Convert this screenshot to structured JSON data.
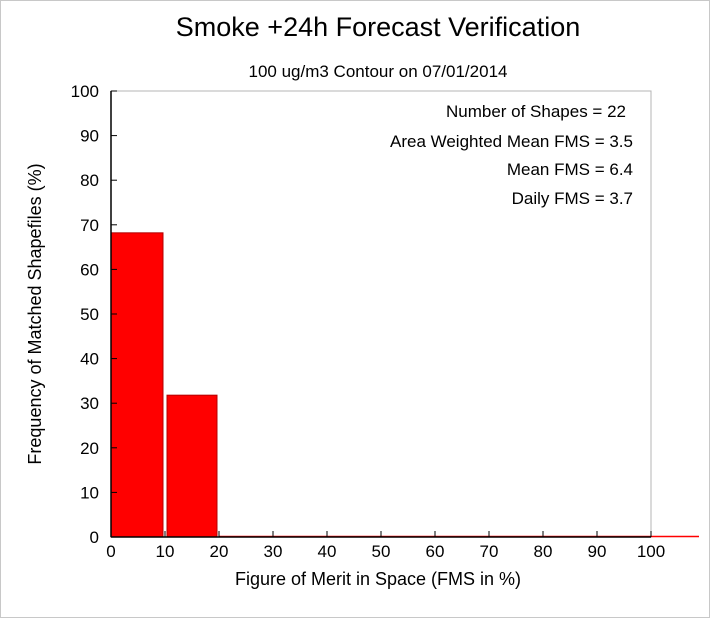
{
  "chart_data": {
    "type": "bar",
    "title": "Smoke +24h Forecast Verification",
    "subtitle": "100 ug/m3 Contour on 07/01/2014",
    "xlabel": "Figure of Merit in Space (FMS in %)",
    "ylabel": "Frequency of Matched Shapefiles (%)",
    "xlim": [
      0,
      100
    ],
    "ylim": [
      0,
      100
    ],
    "xticks": [
      "0",
      "10",
      "20",
      "30",
      "40",
      "50",
      "60",
      "70",
      "80",
      "90",
      "100"
    ],
    "yticks": [
      "0",
      "10",
      "20",
      "30",
      "40",
      "50",
      "60",
      "70",
      "80",
      "90",
      "100"
    ],
    "bins": [
      {
        "x_start": 0,
        "x_end": 10,
        "value": 68.2
      },
      {
        "x_start": 10,
        "x_end": 20,
        "value": 31.8
      },
      {
        "x_start": 20,
        "x_end": 30,
        "value": 0
      },
      {
        "x_start": 30,
        "x_end": 40,
        "value": 0
      },
      {
        "x_start": 40,
        "x_end": 50,
        "value": 0
      },
      {
        "x_start": 50,
        "x_end": 60,
        "value": 0
      },
      {
        "x_start": 60,
        "x_end": 70,
        "value": 0
      },
      {
        "x_start": 70,
        "x_end": 80,
        "value": 0
      },
      {
        "x_start": 80,
        "x_end": 90,
        "value": 0
      },
      {
        "x_start": 90,
        "x_end": 100,
        "value": 0
      }
    ],
    "stats": [
      "Number of Shapes = 22",
      "Area Weighted Mean FMS = 3.5",
      "Mean FMS = 6.4",
      "Daily FMS = 3.7"
    ],
    "legend": "none",
    "grid": false,
    "colors": {
      "bar": "#ff0000",
      "bar_edge": "#b40000",
      "baseline": "#ff0000",
      "axis": "#000000",
      "frame": "#b4b4b4"
    }
  }
}
